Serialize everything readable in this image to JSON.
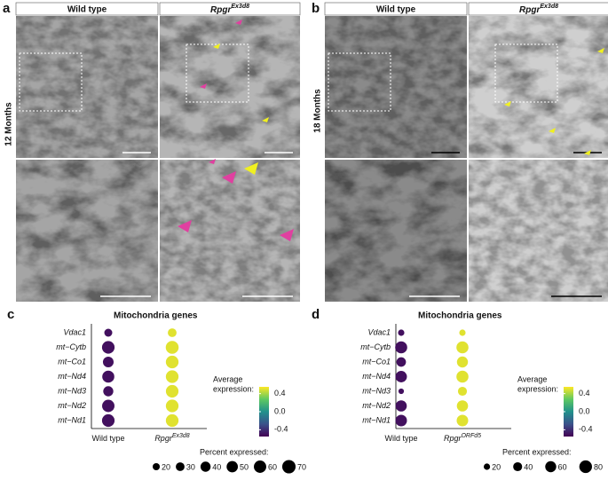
{
  "micrographs": [
    {
      "label": "a",
      "row_label": "12 Months",
      "col1": "Wild type",
      "col2": "Rpgr",
      "col2_sup": "Ex3d8"
    },
    {
      "label": "b",
      "row_label": "18 Months",
      "col1": "Wild type",
      "col2": "Rpgr",
      "col2_sup": "Ex3d8"
    }
  ],
  "chart_data": [
    {
      "type": "dotplot",
      "panel_label": "c",
      "title": "Mitochondria genes",
      "y_categories": [
        "Vdac1",
        "mt−Cytb",
        "mt−Co1",
        "mt−Nd4",
        "mt−Nd3",
        "mt−Nd2",
        "mt−Nd1"
      ],
      "x_categories": [
        "Wild type",
        "Rpgr"
      ],
      "x_category_superscripts": [
        null,
        "Ex3d8"
      ],
      "color_values": [
        [
          -0.5,
          -0.5,
          -0.5,
          -0.5,
          -0.5,
          -0.5,
          -0.5
        ],
        [
          0.5,
          0.5,
          0.5,
          0.5,
          0.5,
          0.5,
          0.5
        ]
      ],
      "size_values": [
        [
          25,
          62,
          45,
          57,
          40,
          60,
          62
        ],
        [
          30,
          65,
          63,
          63,
          62,
          63,
          63
        ]
      ],
      "color_title": [
        "Average",
        "expression:"
      ],
      "colorlim": [
        -0.55,
        0.55
      ],
      "colorticks": [
        0.4,
        {
          "value": 0,
          "label": "0.0"
        },
        -0.4
      ],
      "size_title": "Percent expressed:",
      "size_legend": [
        20,
        30,
        40,
        50,
        60,
        70
      ]
    },
    {
      "type": "dotplot",
      "panel_label": "d",
      "title": "Mitochondria genes",
      "y_categories": [
        "Vdac1",
        "mt−Cytb",
        "mt−Co1",
        "mt−Nd4",
        "mt−Nd3",
        "mt−Nd2",
        "mt−Nd1"
      ],
      "x_categories": [
        "Wild type",
        "Rpgr"
      ],
      "x_category_superscripts": [
        null,
        "ORFd5"
      ],
      "color_values": [
        [
          -0.5,
          -0.5,
          -0.5,
          -0.5,
          -0.5,
          -0.5,
          -0.5
        ],
        [
          0.5,
          0.5,
          0.5,
          0.5,
          0.5,
          0.5,
          0.5
        ]
      ],
      "size_values": [
        [
          20,
          72,
          45,
          65,
          15,
          62,
          66
        ],
        [
          20,
          72,
          60,
          72,
          40,
          62,
          66
        ]
      ],
      "color_title": [
        "Average",
        "expression:"
      ],
      "colorlim": [
        -0.55,
        0.55
      ],
      "colorticks": [
        0.4,
        {
          "value": 0,
          "label": "0.0"
        },
        -0.4
      ],
      "size_title": "Percent expressed:",
      "size_legend": [
        20,
        40,
        60,
        80
      ]
    }
  ]
}
